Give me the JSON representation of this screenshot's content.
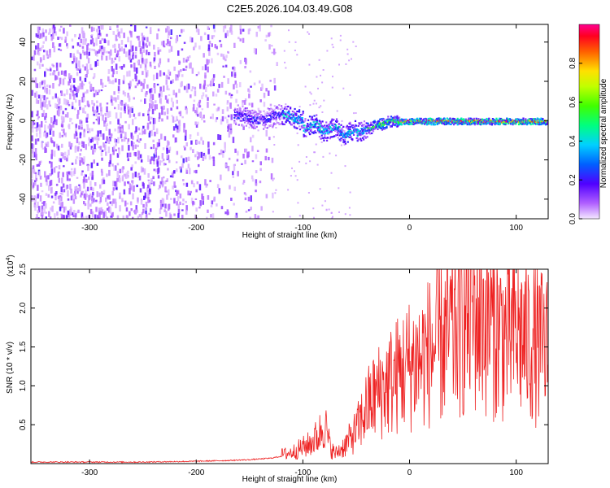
{
  "title": "C2E5.2026.104.03.49.G08",
  "chart_data": [
    {
      "type": "heatmap",
      "xlabel": "Height of straight line (km)",
      "ylabel": "Frequency (Hz)",
      "xlim": [
        -355,
        130
      ],
      "ylim": [
        -50,
        49
      ],
      "xticks": [
        -300,
        -200,
        -100,
        0,
        100
      ],
      "yticks": [
        -40,
        -20,
        0,
        20,
        40
      ],
      "colorbar": {
        "label": "Normalized spectral amplitude",
        "range": [
          0,
          1
        ],
        "ticks": [
          0.0,
          0.2,
          0.4,
          0.6,
          0.8
        ]
      },
      "features": {
        "noise_region_x": [
          -355,
          -125
        ],
        "signal_line_freq_hz": 0,
        "signal_onset_km": -165
      }
    },
    {
      "type": "line",
      "xlabel": "Height of straight line (km)",
      "ylabel": "SNR (10 * v/v)",
      "yscale_label": "(x10",
      "yscale_exp": "4",
      "xlim": [
        -355,
        130
      ],
      "ylim": [
        0,
        2.5
      ],
      "xticks": [
        -300,
        -200,
        -100,
        0,
        100
      ],
      "yticks": [
        0.5,
        1.0,
        1.5,
        2.0,
        2.5
      ],
      "color": "#ee2222",
      "series": [
        {
          "name": "SNR",
          "x": [
            -355,
            -300,
            -250,
            -200,
            -170,
            -150,
            -130,
            -110,
            -95,
            -85,
            -80,
            -75,
            -70,
            -60,
            -50,
            -40,
            -30,
            -20,
            -10,
            0,
            10,
            20,
            30,
            40,
            50,
            60,
            70,
            80,
            90,
            100,
            110,
            120,
            130
          ],
          "y": [
            0.02,
            0.02,
            0.02,
            0.03,
            0.04,
            0.05,
            0.07,
            0.12,
            0.2,
            0.3,
            0.45,
            0.2,
            0.1,
            0.2,
            0.35,
            0.6,
            0.75,
            0.85,
            0.95,
            1.05,
            1.1,
            1.2,
            1.3,
            1.4,
            1.5,
            1.6,
            1.55,
            1.45,
            1.35,
            1.4,
            1.3,
            1.25,
            1.2
          ]
        }
      ]
    }
  ]
}
